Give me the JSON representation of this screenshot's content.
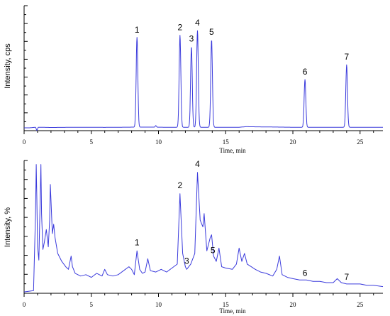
{
  "chart_data": [
    {
      "type": "line",
      "title": "",
      "xlabel": "Time, min",
      "ylabel": "Intensity, cps",
      "xlim": [
        0,
        26.7
      ],
      "ylim": [
        0,
        1.1
      ],
      "x_ticks": [
        0,
        5,
        10,
        15,
        20,
        25
      ],
      "x_tick_labels": [
        "0",
        "5",
        "10",
        "15",
        "20",
        "25"
      ],
      "y_tick_labels": [],
      "grid": false,
      "color": "#3b3bdc",
      "baseline": 0.03,
      "series": [
        {
          "x": [
            0,
            0.4,
            0.85,
            0.95,
            1.05,
            1.2,
            2,
            4,
            6,
            8,
            9.7,
            9.8,
            9.9,
            10.5,
            16,
            16.5,
            20,
            26.7
          ],
          "y": [
            0.025,
            0.025,
            0.03,
            0.0,
            0.03,
            0.03,
            0.028,
            0.03,
            0.029,
            0.031,
            0.031,
            0.045,
            0.031,
            0.03,
            0.03,
            0.035,
            0.03,
            0.03
          ]
        }
      ],
      "peaks": [
        {
          "label": "1",
          "x": 8.4,
          "y": 0.82
        },
        {
          "label": "2",
          "x": 11.6,
          "y": 0.84
        },
        {
          "label": "3",
          "x": 12.45,
          "y": 0.74
        },
        {
          "label": "4",
          "x": 12.9,
          "y": 0.88
        },
        {
          "label": "5",
          "x": 13.95,
          "y": 0.8
        },
        {
          "label": "6",
          "x": 20.9,
          "y": 0.45
        },
        {
          "label": "7",
          "x": 24.0,
          "y": 0.58
        }
      ]
    },
    {
      "type": "line",
      "title": "",
      "xlabel": "Time, min",
      "ylabel": "Intensity, %",
      "xlim": [
        0,
        26.7
      ],
      "ylim": [
        0,
        100
      ],
      "x_ticks": [
        0,
        5,
        10,
        15,
        20,
        25
      ],
      "x_tick_labels": [
        "0",
        "5",
        "10",
        "15",
        "20",
        "25"
      ],
      "y_tick_labels": [],
      "grid": false,
      "color": "#3b3bdc",
      "series": [
        {
          "x": [
            0,
            0.7,
            0.85,
            0.9,
            0.95,
            1.0,
            1.1,
            1.2,
            1.25,
            1.3,
            1.4,
            1.5,
            1.65,
            1.8,
            1.9,
            1.95,
            2.0,
            2.1,
            2.2,
            2.3,
            2.5,
            2.8,
            3.1,
            3.3,
            3.5,
            3.6,
            3.8,
            4.2,
            4.6,
            5.0,
            5.4,
            5.8,
            6.0,
            6.2,
            6.6,
            7.0,
            7.4,
            7.8,
            8.0,
            8.2,
            8.4,
            8.6,
            8.8,
            9.0,
            9.2,
            9.4,
            9.8,
            10.2,
            10.6,
            11.0,
            11.4,
            11.6,
            11.8,
            12.0,
            12.1,
            12.4,
            12.7,
            12.9,
            13.1,
            13.3,
            13.4,
            13.6,
            13.85,
            13.95,
            14.1,
            14.3,
            14.5,
            14.7,
            15.0,
            15.5,
            15.8,
            16.0,
            16.2,
            16.4,
            16.6,
            16.9,
            17.2,
            17.6,
            18.0,
            18.5,
            18.8,
            19.0,
            19.2,
            19.6,
            20.0,
            20.5,
            21.0,
            21.5,
            22.0,
            22.5,
            23.0,
            23.3,
            23.6,
            24.0,
            24.5,
            25.0,
            25.5,
            26.0,
            26.7
          ],
          "y": [
            1,
            2,
            60,
            97,
            70,
            35,
            25,
            72,
            97,
            60,
            33,
            38,
            48,
            35,
            55,
            82,
            70,
            45,
            52,
            42,
            30,
            24,
            20,
            18,
            28,
            20,
            15,
            13,
            14,
            12,
            15,
            13,
            18,
            14,
            13,
            14,
            17,
            20,
            18,
            14,
            32,
            18,
            15,
            16,
            26,
            17,
            16,
            18,
            16,
            19,
            22,
            75,
            30,
            20,
            18,
            22,
            30,
            91,
            55,
            50,
            60,
            32,
            42,
            44,
            28,
            24,
            34,
            20,
            19,
            18,
            22,
            34,
            24,
            30,
            22,
            20,
            18,
            16,
            15,
            13,
            18,
            28,
            14,
            12,
            11,
            10,
            10,
            9,
            9,
            8,
            8,
            11,
            8,
            7,
            7,
            7,
            6,
            6,
            5
          ]
        }
      ],
      "peaks": [
        {
          "label": "1",
          "x": 8.4,
          "y": 34
        },
        {
          "label": "2",
          "x": 11.6,
          "y": 77
        },
        {
          "label": "3",
          "x": 12.1,
          "y": 20
        },
        {
          "label": "4",
          "x": 12.9,
          "y": 93
        },
        {
          "label": "5",
          "x": 14.05,
          "y": 28
        },
        {
          "label": "6",
          "x": 20.9,
          "y": 11
        },
        {
          "label": "7",
          "x": 24.0,
          "y": 8
        }
      ]
    }
  ]
}
